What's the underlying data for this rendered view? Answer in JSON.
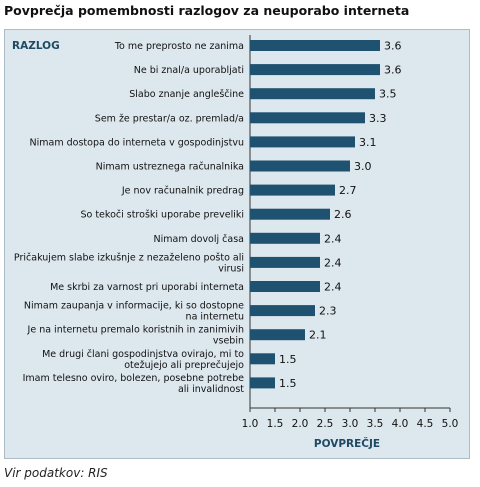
{
  "title": "Povprečja pomembnosti razlogov za neuporabo interneta",
  "source": "Vir podatkov: RIS",
  "colors": {
    "bar": "#1e5270",
    "background": "#dde7ee",
    "border": "#aebcc7"
  },
  "chart_data": {
    "type": "bar",
    "orientation": "horizontal",
    "ylabel": "RAZLOG",
    "xlabel": "POVPREČJE",
    "xlim": [
      1.0,
      5.0
    ],
    "ticks": [
      "1.0",
      "1.5",
      "2.0",
      "2.5",
      "3.0",
      "3.5",
      "4.0",
      "4.5",
      "5.0"
    ],
    "grid": false,
    "categories": [
      [
        "To me preprosto ne zanima"
      ],
      [
        "Ne bi znal/a uporabljati"
      ],
      [
        "Slabo znanje angleščine"
      ],
      [
        "Sem že prestar/a oz. premlad/a"
      ],
      [
        "Nimam dostopa do interneta v gospodinjstvu"
      ],
      [
        "Nimam ustreznega računalnika"
      ],
      [
        "Je nov računalnik predrag"
      ],
      [
        "So tekoči stroški uporabe preveliki"
      ],
      [
        "Nimam dovolj časa"
      ],
      [
        "Pričakujem slabe izkušnje z nezaželeno pošto ali",
        "virusi"
      ],
      [
        "Me skrbi za varnost pri uporabi interneta"
      ],
      [
        "Nimam zaupanja v informacije, ki so dostopne",
        "na internetu"
      ],
      [
        "Je na internetu premalo koristnih in zanimivih",
        "vsebin"
      ],
      [
        "Me drugi člani gospodinjstva ovirajo, mi to",
        "otežujejo ali preprečujejo"
      ],
      [
        "Imam telesno oviro, bolezen, posebne potrebe",
        "ali invalidnost"
      ]
    ],
    "values": [
      3.6,
      3.6,
      3.5,
      3.3,
      3.1,
      3.0,
      2.7,
      2.6,
      2.4,
      2.4,
      2.4,
      2.3,
      2.1,
      1.5,
      1.5
    ],
    "value_labels": [
      "3.6",
      "3.6",
      "3.5",
      "3.3",
      "3.1",
      "3.0",
      "2.7",
      "2.6",
      "2.4",
      "2.4",
      "2.4",
      "2.3",
      "2.1",
      "1.5",
      "1.5"
    ]
  }
}
